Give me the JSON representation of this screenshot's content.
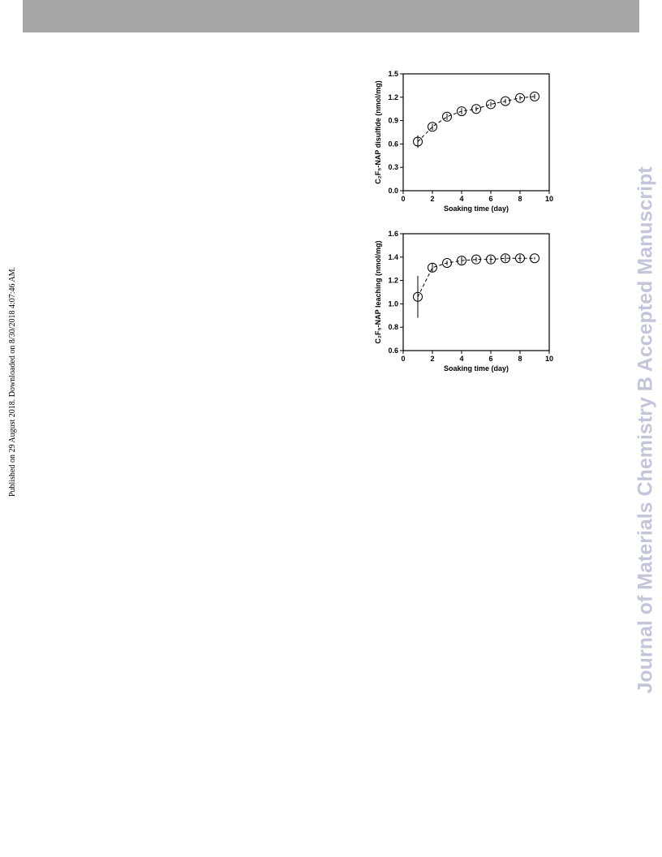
{
  "side_note": "Published on 29 August 2018. Downloaded on 8/30/2018 4:07:46 AM.",
  "watermark": "Journal of Materials Chemistry B Accepted Manuscript",
  "chart_data": [
    {
      "type": "scatter",
      "x_label": "Soaking time (day)",
      "y_label": "C₂F₅-NAP disulfide (nmol/mg)",
      "x": [
        1,
        2,
        3,
        4,
        5,
        6,
        7,
        8,
        9
      ],
      "series": [
        {
          "color": "#000000",
          "values": [
            0.63,
            0.82,
            0.95,
            1.02,
            1.05,
            1.11,
            1.15,
            1.19,
            1.21
          ],
          "errors": [
            0.08,
            0.04,
            0.04,
            0.04,
            0.03,
            0.03,
            0.03,
            0.03,
            0.03
          ]
        }
      ],
      "xlim": [
        0,
        10
      ],
      "xticks": [
        0,
        2,
        4,
        6,
        8,
        10
      ],
      "ylim": [
        0,
        1.5
      ],
      "yticks": [
        {
          "value": 0,
          "label": "0.0"
        },
        0.3,
        0.6,
        0.9,
        1.2,
        1.5
      ]
    },
    {
      "type": "scatter",
      "x_label": "Soaking time (day)",
      "y_label": "C₂F₅-NAP leaching (nmol/mg)",
      "x": [
        1,
        2,
        3,
        4,
        5,
        6,
        7,
        8,
        9
      ],
      "series": [
        {
          "color": "#000000",
          "values": [
            1.06,
            1.31,
            1.35,
            1.37,
            1.38,
            1.38,
            1.39,
            1.39,
            1.39
          ],
          "errors": [
            0.18,
            0.04,
            0.02,
            0.03,
            0.02,
            0.03,
            0.03,
            0.03,
            0.01
          ]
        }
      ],
      "xlim": [
        0,
        10
      ],
      "xticks": [
        0,
        2,
        4,
        6,
        8,
        10
      ],
      "ylim": [
        0.6,
        1.6
      ],
      "yticks": [
        0.6,
        0.8,
        {
          "value": 1,
          "label": "1.0"
        },
        1.2,
        1.4,
        1.6
      ]
    }
  ]
}
